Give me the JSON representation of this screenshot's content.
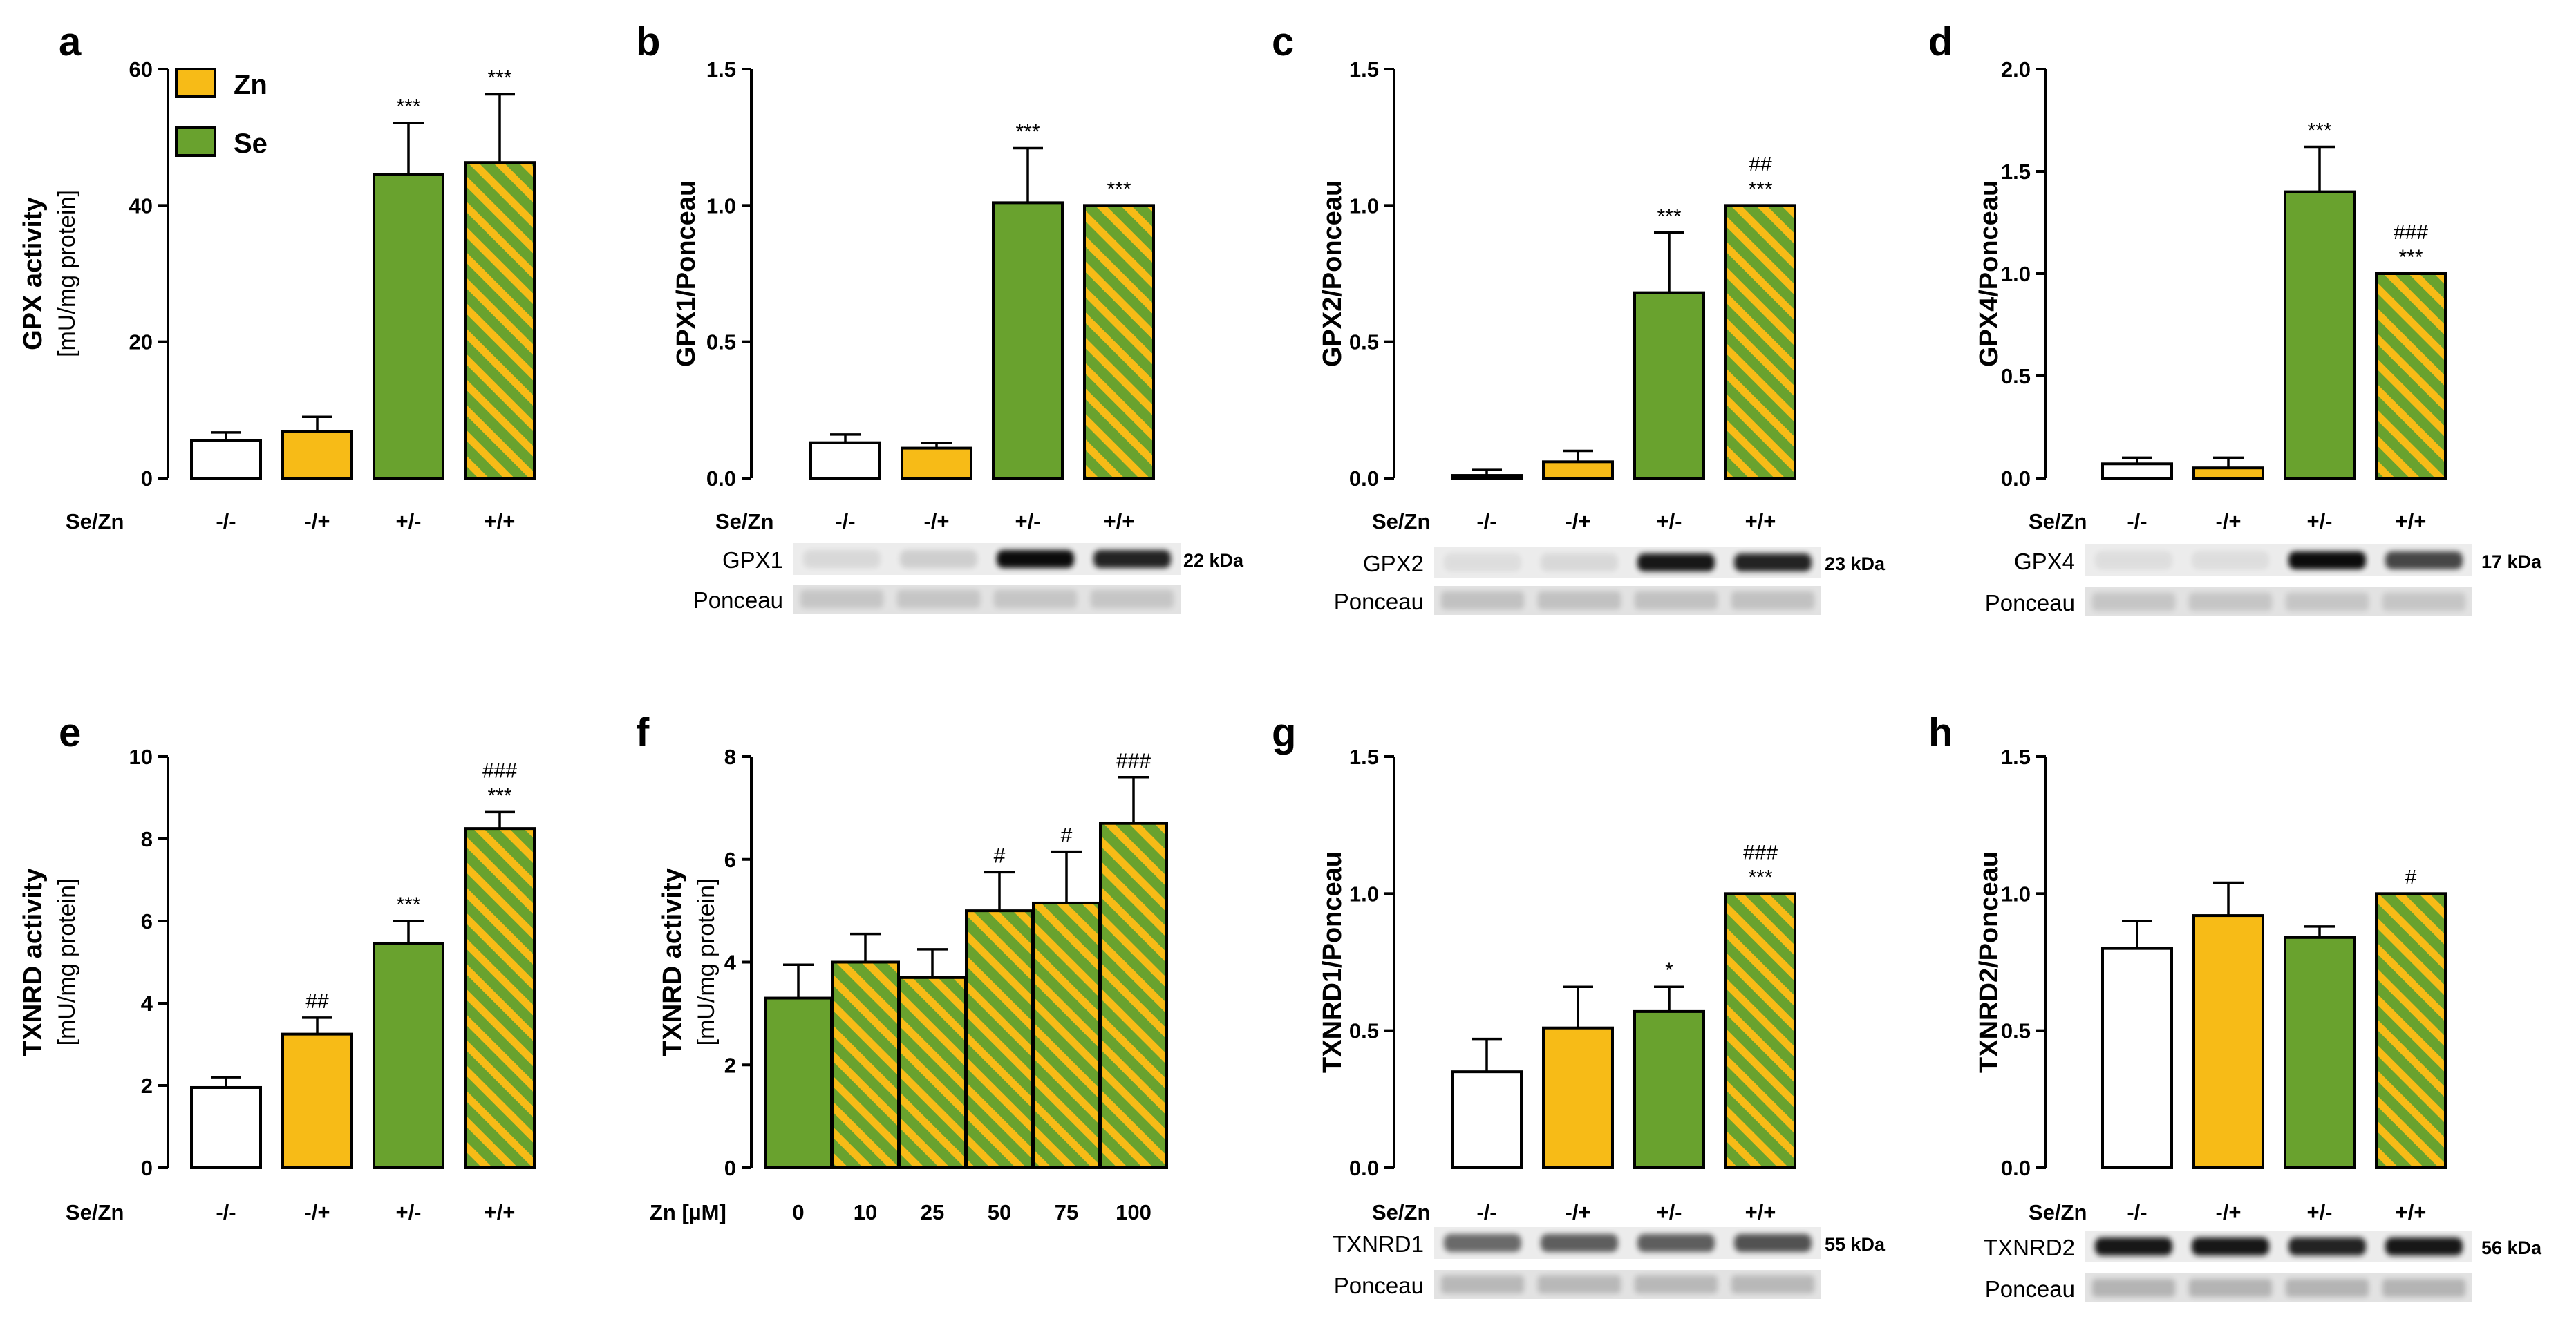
{
  "colors": {
    "control": "#ffffff",
    "zn": "#f7bb17",
    "se": "#69a22e",
    "hatch_stripe": "#f7bb17",
    "outline": "#000000"
  },
  "legend": [
    {
      "label": "Zn",
      "pattern": "zn"
    },
    {
      "label": "Se",
      "pattern": "se"
    }
  ],
  "chart_data": [
    {
      "id": "a",
      "letter": "a",
      "type": "bar",
      "ylabel_bold": "GPX activity",
      "ylabel_sub": "[mU/mg protein]",
      "xlabel": "Se/Zn",
      "categories": [
        "-/-",
        "-/+",
        "+/-",
        "+/+"
      ],
      "patterns": [
        "control",
        "zn",
        "se",
        "hatch"
      ],
      "values": [
        5.5,
        6.8,
        44.5,
        46.3
      ],
      "errors": [
        1.2,
        2.2,
        7.6,
        10.0
      ],
      "significance": [
        [
          ""
        ],
        [
          ""
        ],
        [
          "***"
        ],
        [
          "***"
        ]
      ],
      "ylim": [
        0,
        60
      ],
      "yticks": [
        "0",
        "20",
        "40",
        "60"
      ],
      "has_legend": true
    },
    {
      "id": "b",
      "letter": "b",
      "type": "bar",
      "ylabel_bold": "GPX1/Ponceau",
      "ylabel_sub": "",
      "xlabel": "Se/Zn",
      "categories": [
        "-/-",
        "-/+",
        "+/-",
        "+/+"
      ],
      "patterns": [
        "control",
        "zn",
        "se",
        "hatch"
      ],
      "values": [
        0.13,
        0.11,
        1.01,
        1.0
      ],
      "errors": [
        0.03,
        0.02,
        0.2,
        0.0
      ],
      "significance": [
        [
          ""
        ],
        [
          ""
        ],
        [
          "***"
        ],
        [
          "***"
        ]
      ],
      "ylim": [
        0,
        1.5
      ],
      "yticks": [
        "0.0",
        "0.5",
        "1.0",
        "1.5"
      ],
      "blot": {
        "protein": "GPX1",
        "kda": "22 kDa",
        "loading": "Ponceau",
        "intensity": [
          0.08,
          0.12,
          0.95,
          0.85
        ],
        "loading_intensity": [
          0.12,
          0.12,
          0.12,
          0.12
        ]
      }
    },
    {
      "id": "c",
      "letter": "c",
      "type": "bar",
      "ylabel_bold": "GPX2/Ponceau",
      "ylabel_sub": "",
      "xlabel": "Se/Zn",
      "categories": [
        "-/-",
        "-/+",
        "+/-",
        "+/+"
      ],
      "patterns": [
        "control",
        "zn",
        "se",
        "hatch"
      ],
      "values": [
        0.01,
        0.06,
        0.68,
        1.0
      ],
      "errors": [
        0.02,
        0.04,
        0.22,
        0.0
      ],
      "significance": [
        [
          ""
        ],
        [
          ""
        ],
        [
          "***"
        ],
        [
          "##",
          "***"
        ]
      ],
      "ylim": [
        0,
        1.5
      ],
      "yticks": [
        "0.0",
        "0.5",
        "1.0",
        "1.5"
      ],
      "blot": {
        "protein": "GPX2",
        "kda": "23 kDa",
        "loading": "Ponceau",
        "intensity": [
          0.06,
          0.08,
          0.9,
          0.85
        ],
        "loading_intensity": [
          0.14,
          0.14,
          0.14,
          0.14
        ]
      }
    },
    {
      "id": "d",
      "letter": "d",
      "type": "bar",
      "ylabel_bold": "GPX4/Ponceau",
      "ylabel_sub": "",
      "xlabel": "Se/Zn",
      "categories": [
        "-/-",
        "-/+",
        "+/-",
        "+/+"
      ],
      "patterns": [
        "control",
        "zn",
        "se",
        "hatch"
      ],
      "values": [
        0.07,
        0.05,
        1.4,
        1.0
      ],
      "errors": [
        0.03,
        0.05,
        0.22,
        0.0
      ],
      "significance": [
        [
          ""
        ],
        [
          ""
        ],
        [
          "***"
        ],
        [
          "###",
          "***"
        ]
      ],
      "ylim": [
        0,
        2.0
      ],
      "yticks": [
        "0.0",
        "0.5",
        "1.0",
        "1.5",
        "2.0"
      ],
      "blot": {
        "protein": "GPX4",
        "kda": "17 kDa",
        "loading": "Ponceau",
        "intensity": [
          0.06,
          0.06,
          0.95,
          0.7
        ],
        "loading_intensity": [
          0.12,
          0.12,
          0.12,
          0.12
        ]
      }
    },
    {
      "id": "e",
      "letter": "e",
      "type": "bar",
      "ylabel_bold": "TXNRD activity",
      "ylabel_sub": "[mU/mg protein]",
      "xlabel": "Se/Zn",
      "categories": [
        "-/-",
        "-/+",
        "+/-",
        "+/+"
      ],
      "patterns": [
        "control",
        "zn",
        "se",
        "hatch"
      ],
      "values": [
        1.95,
        3.25,
        5.45,
        8.25
      ],
      "errors": [
        0.25,
        0.4,
        0.55,
        0.4
      ],
      "significance": [
        [
          ""
        ],
        [
          "##"
        ],
        [
          "***"
        ],
        [
          "###",
          "***"
        ]
      ],
      "ylim": [
        0,
        10
      ],
      "yticks": [
        "0",
        "2",
        "4",
        "6",
        "8",
        "10"
      ]
    },
    {
      "id": "f",
      "letter": "f",
      "type": "bar",
      "ylabel_bold": "TXNRD activity",
      "ylabel_sub": "[mU/mg protein]",
      "xlabel": "Zn [µM]",
      "categories": [
        "0",
        "10",
        "25",
        "50",
        "75",
        "100"
      ],
      "patterns": [
        "se",
        "hatch",
        "hatch",
        "hatch",
        "hatch",
        "hatch"
      ],
      "values": [
        3.3,
        4.0,
        3.7,
        5.0,
        5.15,
        6.7
      ],
      "errors": [
        0.65,
        0.55,
        0.55,
        0.75,
        1.0,
        0.9
      ],
      "significance": [
        [
          ""
        ],
        [
          ""
        ],
        [
          ""
        ],
        [
          "#"
        ],
        [
          "#"
        ],
        [
          "###"
        ]
      ],
      "ylim": [
        0,
        8
      ],
      "yticks": [
        "0",
        "2",
        "4",
        "6",
        "8"
      ]
    },
    {
      "id": "g",
      "letter": "g",
      "type": "bar",
      "ylabel_bold": "TXNRD1/Ponceau",
      "ylabel_sub": "",
      "xlabel": "Se/Zn",
      "categories": [
        "-/-",
        "-/+",
        "+/-",
        "+/+"
      ],
      "patterns": [
        "control",
        "zn",
        "se",
        "hatch"
      ],
      "values": [
        0.35,
        0.51,
        0.57,
        1.0
      ],
      "errors": [
        0.12,
        0.15,
        0.09,
        0.0
      ],
      "significance": [
        [
          ""
        ],
        [
          ""
        ],
        [
          "*"
        ],
        [
          "###",
          "***"
        ]
      ],
      "ylim": [
        0,
        1.5
      ],
      "yticks": [
        "0.0",
        "0.5",
        "1.0",
        "1.5"
      ],
      "blot": {
        "protein": "TXNRD1",
        "kda": "55 kDa",
        "loading": "Ponceau",
        "intensity": [
          0.55,
          0.6,
          0.6,
          0.65
        ],
        "loading_intensity": [
          0.18,
          0.18,
          0.18,
          0.18
        ]
      }
    },
    {
      "id": "h",
      "letter": "h",
      "type": "bar",
      "ylabel_bold": "TXNRD2/Ponceau",
      "ylabel_sub": "",
      "xlabel": "Se/Zn",
      "categories": [
        "-/-",
        "-/+",
        "+/-",
        "+/+"
      ],
      "patterns": [
        "control",
        "zn",
        "se",
        "hatch"
      ],
      "values": [
        0.8,
        0.92,
        0.84,
        1.0
      ],
      "errors": [
        0.1,
        0.12,
        0.04,
        0.0
      ],
      "significance": [
        [
          ""
        ],
        [
          ""
        ],
        [
          ""
        ],
        [
          "#"
        ]
      ],
      "ylim": [
        0,
        1.5
      ],
      "yticks": [
        "0.0",
        "0.5",
        "1.0",
        "1.5"
      ],
      "blot": {
        "protein": "TXNRD2",
        "kda": "56 kDa",
        "loading": "Ponceau",
        "intensity": [
          0.9,
          0.9,
          0.85,
          0.9
        ],
        "loading_intensity": [
          0.2,
          0.2,
          0.2,
          0.2
        ]
      }
    }
  ]
}
